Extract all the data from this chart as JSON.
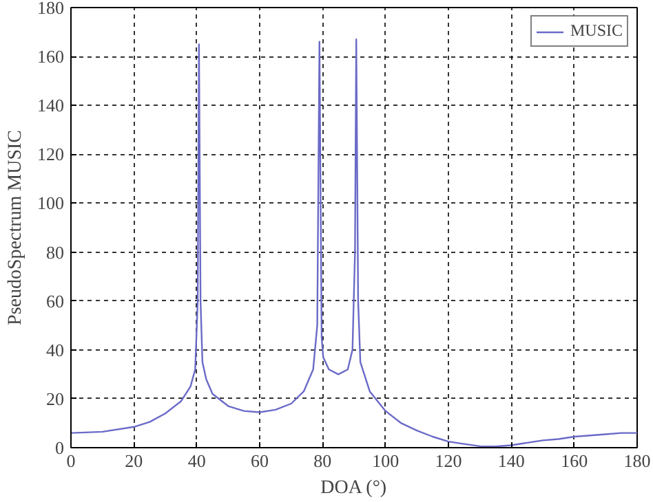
{
  "chart_data": {
    "type": "line",
    "xlabel": "DOA (°)",
    "ylabel": "PseudoSpectrum MUSIC",
    "x": [
      0,
      10,
      20,
      25,
      30,
      35,
      38,
      39.5,
      40.3,
      40.7,
      41.2,
      41.8,
      43,
      45,
      50,
      55,
      60,
      65,
      70,
      74,
      77,
      78.3,
      79,
      79.7,
      80.2,
      82,
      85,
      88,
      89.5,
      90.3,
      90.7,
      91.3,
      92,
      95,
      100,
      105,
      110,
      115,
      120,
      125,
      130,
      135,
      140,
      145,
      150,
      155,
      160,
      170,
      175,
      180
    ],
    "series": [
      {
        "name": "MUSIC",
        "color": "#6a6ac8",
        "values": [
          6,
          6.5,
          8.5,
          10.5,
          14,
          19,
          25,
          32,
          60,
          165,
          60,
          35,
          28,
          22,
          17,
          15,
          14.5,
          15.5,
          18,
          23,
          32,
          50,
          166,
          45,
          37,
          32,
          30,
          32,
          40,
          80,
          167,
          60,
          35,
          23,
          15,
          10,
          7,
          4.5,
          2.5,
          1.5,
          0.6,
          0.5,
          1,
          2,
          3,
          3.5,
          4.5,
          5.5,
          6,
          6
        ]
      }
    ],
    "xlim": [
      0,
      180
    ],
    "ylim": [
      0,
      180
    ],
    "xticks": [
      0,
      20,
      40,
      60,
      80,
      100,
      120,
      140,
      160,
      180
    ],
    "yticks": [
      0,
      20,
      40,
      60,
      80,
      100,
      120,
      140,
      160,
      180
    ],
    "grid": true,
    "legend": "top right",
    "line_style": "solid"
  }
}
